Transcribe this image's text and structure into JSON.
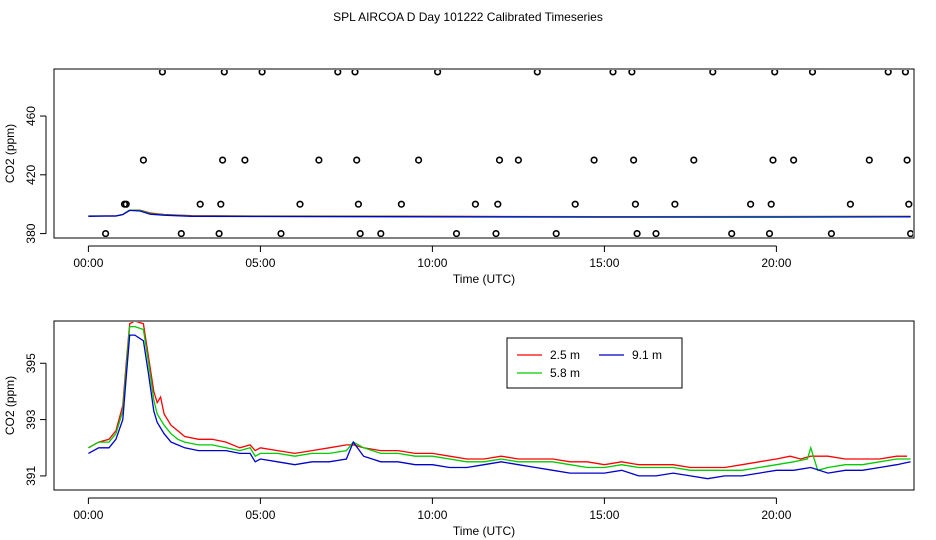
{
  "title": "SPL AIRCOA D  Day 101222  Calibrated Timeseries",
  "chart_data": [
    {
      "type": "scatter",
      "xlabel": "Time (UTC)",
      "ylabel": "CO2 (ppm)",
      "xlim": [
        -1.0,
        24.0
      ],
      "ylim": [
        377,
        492
      ],
      "x_ticks": [
        0,
        5,
        10,
        15,
        20
      ],
      "x_tick_labels": [
        "00:00",
        "05:00",
        "10:00",
        "15:00",
        "20:00"
      ],
      "y_ticks": [
        380,
        420,
        460
      ],
      "y_tick_labels": [
        "380",
        "420",
        "460"
      ],
      "markers": {
        "x": [
          0.5,
          1.05,
          1.1,
          1.6,
          2.15,
          2.7,
          3.25,
          3.8,
          3.85,
          3.9,
          3.95,
          4.55,
          5.05,
          5.6,
          6.15,
          6.7,
          7.25,
          7.75,
          7.8,
          7.85,
          7.9,
          8.5,
          9.1,
          9.6,
          10.15,
          10.7,
          11.25,
          11.85,
          11.9,
          11.95,
          12.5,
          13.05,
          13.6,
          14.15,
          14.7,
          15.25,
          15.8,
          15.85,
          15.9,
          15.95,
          16.5,
          17.05,
          17.6,
          18.15,
          18.7,
          19.25,
          19.8,
          19.85,
          19.9,
          19.95,
          20.5,
          21.05,
          21.6,
          22.15,
          22.7,
          23.25,
          23.75,
          23.8,
          23.85,
          23.9
        ],
        "y": [
          380,
          400,
          400,
          430,
          490,
          380,
          400,
          380,
          400,
          430,
          490,
          430,
          490,
          380,
          400,
          430,
          490,
          490,
          430,
          400,
          380,
          380,
          400,
          430,
          490,
          380,
          400,
          380,
          400,
          430,
          430,
          490,
          380,
          400,
          430,
          490,
          490,
          430,
          400,
          380,
          380,
          400,
          430,
          490,
          380,
          400,
          380,
          400,
          430,
          490,
          430,
          490,
          380,
          400,
          430,
          490,
          490,
          430,
          400,
          380
        ]
      },
      "series": [
        {
          "name": "2.5 m",
          "color": "#ff0000",
          "x": [
            0,
            0.5,
            0.8,
            1.0,
            1.2,
            1.5,
            1.8,
            2.2,
            3,
            5,
            10,
            15,
            20,
            23.9
          ],
          "values": [
            392,
            392,
            392,
            393,
            396,
            396,
            394,
            393,
            392.2,
            392,
            391.8,
            391.5,
            391.6,
            391.7
          ]
        },
        {
          "name": "5.8 m",
          "color": "#00cc00",
          "x": [
            0,
            0.5,
            0.8,
            1.0,
            1.2,
            1.5,
            1.8,
            2.2,
            3,
            5,
            10,
            15,
            20,
            23.9
          ],
          "values": [
            392,
            392,
            392,
            393,
            396,
            395.8,
            393.6,
            392.8,
            392,
            391.8,
            391.6,
            391.4,
            391.5,
            391.6
          ]
        },
        {
          "name": "9.1 m",
          "color": "#0000cc",
          "x": [
            0,
            0.5,
            0.8,
            1.0,
            1.2,
            1.5,
            1.8,
            2.2,
            3,
            5,
            10,
            15,
            20,
            23.9
          ],
          "values": [
            391.8,
            392,
            392,
            393,
            395.8,
            395.4,
            393.2,
            392.5,
            391.8,
            391.6,
            391.4,
            391.2,
            391.2,
            391.4
          ]
        }
      ]
    },
    {
      "type": "line",
      "xlabel": "Time (UTC)",
      "ylabel": "CO2 (ppm)",
      "xlim": [
        -1.0,
        24.0
      ],
      "ylim": [
        390.5,
        396.5
      ],
      "x_ticks": [
        0,
        5,
        10,
        15,
        20
      ],
      "x_tick_labels": [
        "00:00",
        "05:00",
        "10:00",
        "15:00",
        "20:00"
      ],
      "y_ticks": [
        391,
        393,
        395
      ],
      "y_tick_labels": [
        "391",
        "393",
        "395"
      ],
      "legend": {
        "position": "top-right",
        "entries": [
          {
            "label": "2.5 m",
            "color": "#ff0000"
          },
          {
            "label": "9.1 m",
            "color": "#0000cc"
          },
          {
            "label": "5.8 m",
            "color": "#00cc00"
          }
        ]
      },
      "series": [
        {
          "name": "2.5 m",
          "color": "#ff0000",
          "x": [
            0,
            0.3,
            0.6,
            0.8,
            1.0,
            1.1,
            1.2,
            1.35,
            1.6,
            1.75,
            1.9,
            2.0,
            2.1,
            2.2,
            2.4,
            2.6,
            2.8,
            3.2,
            3.6,
            4.0,
            4.4,
            4.7,
            4.85,
            5.0,
            5.5,
            6.0,
            6.5,
            7.0,
            7.5,
            7.7,
            8.0,
            8.5,
            9.0,
            9.5,
            10.0,
            10.5,
            11.0,
            11.5,
            12.0,
            12.5,
            13.0,
            13.5,
            14.0,
            14.5,
            15.0,
            15.5,
            16.0,
            16.5,
            17.0,
            17.5,
            18.0,
            18.5,
            19.0,
            19.5,
            20.0,
            20.4,
            20.7,
            21.0,
            21.5,
            22.0,
            22.5,
            23.0,
            23.5,
            23.8
          ],
          "values": [
            392.0,
            392.2,
            392.3,
            392.6,
            393.5,
            395.0,
            396.4,
            396.5,
            396.4,
            395.2,
            394.0,
            393.6,
            393.8,
            393.2,
            392.8,
            392.6,
            392.4,
            392.3,
            392.3,
            392.2,
            392.0,
            392.1,
            391.9,
            392.0,
            391.9,
            391.8,
            391.9,
            392.0,
            392.1,
            392.1,
            392.0,
            391.9,
            391.9,
            391.8,
            391.8,
            391.7,
            391.6,
            391.6,
            391.7,
            391.6,
            391.6,
            391.6,
            391.5,
            391.5,
            391.4,
            391.5,
            391.4,
            391.4,
            391.4,
            391.3,
            391.3,
            391.3,
            391.4,
            391.5,
            391.6,
            391.7,
            391.6,
            391.7,
            391.7,
            391.6,
            391.6,
            391.6,
            391.7,
            391.7
          ]
        },
        {
          "name": "5.8 m",
          "color": "#00cc00",
          "x": [
            0,
            0.3,
            0.6,
            0.8,
            1.0,
            1.1,
            1.2,
            1.35,
            1.6,
            1.75,
            1.9,
            2.0,
            2.2,
            2.4,
            2.6,
            2.8,
            3.2,
            3.6,
            4.0,
            4.4,
            4.7,
            4.85,
            5.0,
            5.5,
            6.0,
            6.5,
            7.0,
            7.5,
            7.7,
            8.0,
            8.5,
            9.0,
            9.5,
            10.0,
            10.5,
            11.0,
            11.5,
            12.0,
            12.5,
            13.0,
            13.5,
            14.0,
            14.5,
            15.0,
            15.5,
            16.0,
            16.5,
            17.0,
            17.5,
            18.0,
            18.5,
            19.0,
            19.5,
            20.0,
            20.5,
            20.9,
            21.0,
            21.2,
            21.5,
            22.0,
            22.5,
            23.0,
            23.5,
            23.9
          ],
          "values": [
            392.0,
            392.2,
            392.2,
            392.5,
            393.3,
            394.8,
            396.3,
            396.3,
            396.2,
            395.0,
            393.7,
            393.2,
            392.8,
            392.5,
            392.3,
            392.2,
            392.1,
            392.1,
            392.0,
            391.9,
            392.0,
            391.7,
            391.8,
            391.8,
            391.7,
            391.8,
            391.8,
            391.9,
            392.2,
            392.0,
            391.8,
            391.8,
            391.7,
            391.7,
            391.6,
            391.5,
            391.5,
            391.6,
            391.5,
            391.5,
            391.5,
            391.4,
            391.3,
            391.3,
            391.4,
            391.3,
            391.3,
            391.3,
            391.2,
            391.2,
            391.2,
            391.2,
            391.3,
            391.4,
            391.5,
            391.6,
            392.0,
            391.2,
            391.3,
            391.4,
            391.4,
            391.5,
            391.6,
            391.6
          ]
        },
        {
          "name": "9.1 m",
          "color": "#0000cc",
          "x": [
            0,
            0.3,
            0.6,
            0.8,
            1.0,
            1.1,
            1.2,
            1.35,
            1.6,
            1.75,
            1.9,
            2.0,
            2.2,
            2.4,
            2.6,
            2.8,
            3.2,
            3.6,
            4.0,
            4.4,
            4.7,
            4.85,
            5.0,
            5.5,
            6.0,
            6.5,
            7.0,
            7.5,
            7.7,
            8.0,
            8.5,
            9.0,
            9.5,
            10.0,
            10.5,
            11.0,
            11.5,
            12.0,
            12.5,
            13.0,
            13.5,
            14.0,
            14.5,
            15.0,
            15.5,
            16.0,
            16.5,
            17.0,
            17.5,
            18.0,
            18.5,
            19.0,
            19.5,
            20.0,
            20.5,
            21.0,
            21.5,
            22.0,
            22.5,
            23.0,
            23.5,
            23.9
          ],
          "values": [
            391.8,
            392.0,
            392.0,
            392.3,
            393.0,
            394.5,
            396.0,
            396.0,
            395.8,
            394.6,
            393.3,
            392.9,
            392.5,
            392.2,
            392.1,
            392.0,
            391.9,
            391.9,
            391.9,
            391.8,
            391.8,
            391.5,
            391.6,
            391.5,
            391.4,
            391.5,
            391.5,
            391.6,
            392.2,
            391.7,
            391.5,
            391.5,
            391.4,
            391.4,
            391.3,
            391.3,
            391.4,
            391.5,
            391.4,
            391.3,
            391.2,
            391.1,
            391.1,
            391.1,
            391.2,
            391.0,
            391.0,
            391.1,
            391.0,
            390.9,
            391.0,
            391.0,
            391.1,
            391.2,
            391.2,
            391.3,
            391.1,
            391.2,
            391.2,
            391.3,
            391.4,
            391.5
          ]
        }
      ]
    }
  ]
}
